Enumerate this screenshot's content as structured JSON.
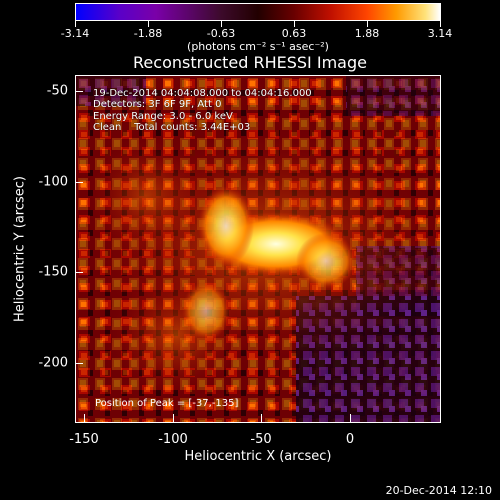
{
  "colorbar": {
    "ticks": [
      "-3.14",
      "-1.88",
      "-0.63",
      "0.63",
      "1.88",
      "3.14"
    ],
    "unit": "(photons cm⁻² s⁻¹ asec⁻²)"
  },
  "title": "Reconstructed RHESSI Image",
  "info": {
    "time": "19-Dec-2014 04:04:08.000 to 04:04:16.000",
    "detectors": "Detectors: 3F 6F 9F, Att 0",
    "energy": "Energy Range: 3.0 - 6.0 keV",
    "clean": "Clean    Total counts: 3.44E+03"
  },
  "peak": "Position of Peak = [-37,-135]",
  "axes": {
    "xlabel": "Heliocentric X (arcsec)",
    "ylabel": "Heliocentric Y (arcsec)",
    "xticks": [
      "-150",
      "-100",
      "-50",
      "0"
    ],
    "yticks": [
      "-50",
      "-100",
      "-150",
      "-200"
    ]
  },
  "footer": "20-Dec-2014 12:10"
}
